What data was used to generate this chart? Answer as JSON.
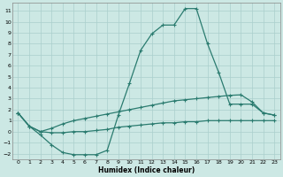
{
  "xlabel": "Humidex (Indice chaleur)",
  "xlim": [
    -0.5,
    23.5
  ],
  "ylim": [
    -2.5,
    11.7
  ],
  "yticks": [
    -2,
    -1,
    0,
    1,
    2,
    3,
    4,
    5,
    6,
    7,
    8,
    9,
    10,
    11
  ],
  "xticks": [
    0,
    1,
    2,
    3,
    4,
    5,
    6,
    7,
    8,
    9,
    10,
    11,
    12,
    13,
    14,
    15,
    16,
    17,
    18,
    19,
    20,
    21,
    22,
    23
  ],
  "line_color": "#2a7b6f",
  "bg_color": "#cce8e4",
  "grid_color": "#aacfcc",
  "line_peak_x": [
    0,
    1,
    2,
    3,
    4,
    5,
    6,
    7,
    8,
    9,
    10,
    11,
    12,
    13,
    14,
    15,
    16,
    17,
    18,
    19,
    20,
    21,
    22,
    23
  ],
  "line_peak_y": [
    1.7,
    0.5,
    -0.3,
    -1.2,
    -1.9,
    -2.1,
    -2.1,
    -2.1,
    -1.7,
    1.5,
    4.4,
    7.4,
    8.9,
    9.7,
    9.7,
    11.2,
    11.2,
    8.0,
    5.4,
    2.5,
    2.5,
    2.5,
    1.7,
    1.5
  ],
  "line_mid_x": [
    0,
    1,
    2,
    3,
    4,
    5,
    6,
    7,
    8,
    9,
    10,
    11,
    12,
    13,
    14,
    15,
    16,
    17,
    18,
    19,
    20,
    21,
    22,
    23
  ],
  "line_mid_y": [
    1.7,
    0.5,
    -0.0,
    0.3,
    0.7,
    1.0,
    1.2,
    1.4,
    1.6,
    1.8,
    2.0,
    2.2,
    2.4,
    2.6,
    2.8,
    2.9,
    3.0,
    3.1,
    3.2,
    3.3,
    3.35,
    2.7,
    1.7,
    1.5
  ],
  "line_bot_x": [
    0,
    1,
    2,
    3,
    4,
    5,
    6,
    7,
    8,
    9,
    10,
    11,
    12,
    13,
    14,
    15,
    16,
    17,
    18,
    19,
    20,
    21,
    22,
    23
  ],
  "line_bot_y": [
    1.7,
    0.5,
    -0.0,
    -0.1,
    -0.1,
    -0.0,
    0.0,
    0.1,
    0.2,
    0.4,
    0.5,
    0.6,
    0.7,
    0.8,
    0.8,
    0.9,
    0.9,
    1.0,
    1.0,
    1.0,
    1.0,
    1.0,
    1.0,
    1.0
  ]
}
